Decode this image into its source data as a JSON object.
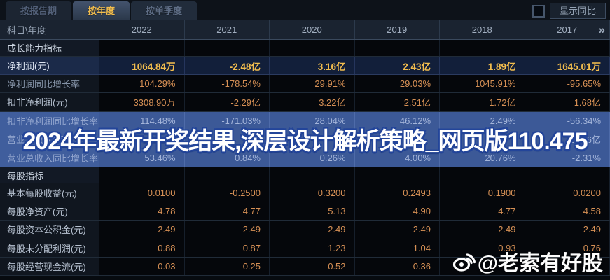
{
  "tabs": [
    {
      "id": "report-period",
      "label": "按报告期",
      "active": false
    },
    {
      "id": "annual",
      "label": "按年度",
      "active": true
    },
    {
      "id": "quarterly",
      "label": "按单季度",
      "active": false
    }
  ],
  "controls": {
    "show_yoy_label": "显示同比",
    "checkbox_checked": false
  },
  "table": {
    "corner_label": "科目\\年度",
    "years": [
      "2022",
      "2021",
      "2020",
      "2019",
      "2018",
      "2017"
    ],
    "more_icon": "»",
    "rows": [
      {
        "type": "section",
        "label": "成长能力指标",
        "values": [
          "",
          "",
          "",
          "",
          "",
          ""
        ]
      },
      {
        "type": "data",
        "style": "highlight",
        "label": "净利润(元)",
        "values": [
          "1064.84万",
          "-2.48亿",
          "3.16亿",
          "2.43亿",
          "1.89亿",
          "1645.01万"
        ]
      },
      {
        "type": "data",
        "style": "pct",
        "label": "净利润同比增长率",
        "values": [
          "104.29%",
          "-178.54%",
          "29.91%",
          "29.03%",
          "1045.91%",
          "-95.65%"
        ]
      },
      {
        "type": "data",
        "style": "",
        "label": "扣非净利润(元)",
        "values": [
          "3308.90万",
          "-2.29亿",
          "3.22亿",
          "2.51亿",
          "1.72亿",
          "1.68亿"
        ]
      },
      {
        "type": "data",
        "style": "band pct",
        "label": "扣非净利润同比增长率",
        "values": [
          "114.48%",
          "-171.03%",
          "28.04%",
          "46.12%",
          "2.49%",
          "-56.34%"
        ]
      },
      {
        "type": "data",
        "style": "band",
        "label": "营业总收入(元)",
        "values": [
          "",
          "",
          "",
          "",
          "",
          "21.26亿"
        ]
      },
      {
        "type": "data",
        "style": "band pct",
        "label": "营业总收入同比增长率",
        "values": [
          "53.46%",
          "0.84%",
          "0.26%",
          "4.00%",
          "20.76%",
          "-2.31%"
        ]
      },
      {
        "type": "section",
        "label": "每股指标",
        "values": [
          "",
          "",
          "",
          "",
          "",
          ""
        ]
      },
      {
        "type": "data",
        "style": "",
        "label": "基本每股收益(元)",
        "values": [
          "0.0100",
          "-0.2500",
          "0.3200",
          "0.2493",
          "0.1900",
          "0.0200"
        ]
      },
      {
        "type": "data",
        "style": "",
        "label": "每股净资产(元)",
        "values": [
          "4.78",
          "4.77",
          "5.13",
          "4.90",
          "4.77",
          "4.58"
        ]
      },
      {
        "type": "data",
        "style": "",
        "label": "每股资本公积金(元)",
        "values": [
          "2.49",
          "2.49",
          "2.49",
          "2.49",
          "2.49",
          "2.49"
        ]
      },
      {
        "type": "data",
        "style": "",
        "label": "每股未分配利润(元)",
        "values": [
          "0.88",
          "0.87",
          "1.23",
          "1.04",
          "0.93",
          "0.76"
        ]
      },
      {
        "type": "data",
        "style": "",
        "label": "每股经营现金流(元)",
        "values": [
          "0.03",
          "0.25",
          "0.52",
          "0.36",
          "",
          ""
        ]
      }
    ]
  },
  "watermarks": {
    "banner_text": "2024年最新开奖结果,深层设计解析策略_网页版110.475",
    "weibo_text": "@老索有好股",
    "weibo_icon": "weibo-logo-icon"
  },
  "colors": {
    "accent-gold": "#f2bd4e",
    "value-orange": "#d69055",
    "band-blue": "#3c5997",
    "band-text": "#a4b5da",
    "highlight-navy": "#121f3a"
  }
}
